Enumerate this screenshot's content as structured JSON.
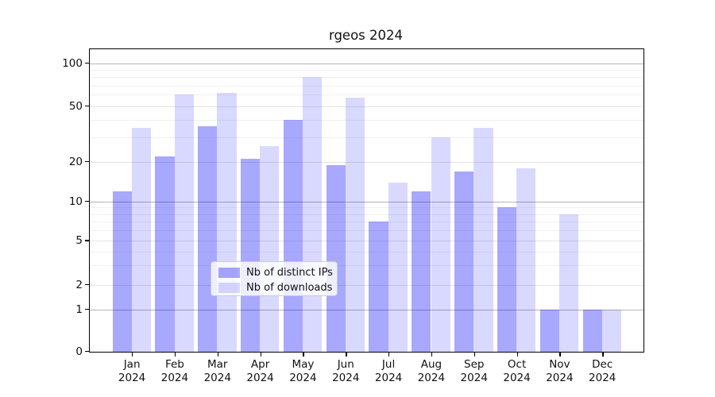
{
  "title": "rgeos 2024",
  "chart_data": {
    "type": "bar",
    "title": "rgeos 2024",
    "categories": [
      "Jan",
      "Feb",
      "Mar",
      "Apr",
      "May",
      "Jun",
      "Jul",
      "Aug",
      "Sep",
      "Oct",
      "Nov",
      "Dec"
    ],
    "category_year": "2024",
    "series": [
      {
        "name": "Nb of distinct IPs",
        "fill": "rgba(0,0,255,0.34)",
        "hex_on_white": "#a9a9f8",
        "values": [
          12,
          22,
          36,
          21,
          40,
          19,
          7,
          12,
          17,
          9,
          1,
          1
        ]
      },
      {
        "name": "Nb of downloads",
        "fill": "rgba(0,0,255,0.15)",
        "hex_on_white": "#d9d9f9",
        "values": [
          35,
          60,
          62,
          26,
          80,
          57,
          14,
          30,
          35,
          18,
          8,
          1
        ]
      }
    ],
    "xlabel": "",
    "ylabel": "",
    "yscale": "symlog",
    "ylim": [
      0,
      126
    ],
    "yticks": [
      0,
      1,
      2,
      5,
      10,
      20,
      50,
      100
    ],
    "yticks_minor": [
      3,
      4,
      6,
      7,
      8,
      9,
      30,
      40,
      60,
      70,
      80,
      90
    ],
    "grid": "horizontal",
    "legend_position": "lower center inside plot"
  },
  "legend": {
    "items": [
      {
        "label": "Nb of distinct IPs"
      },
      {
        "label": "Nb of downloads"
      }
    ]
  },
  "colors": {
    "bar_ips": "#a9a9f8",
    "bar_downloads": "#d9d9f9",
    "grid_major": "#b5b5b5",
    "grid_light": "#e4e4e4",
    "grid_minor": "#f0f0f0",
    "axis": "#000000",
    "legend_border": "#cccccc",
    "background": "#ffffff"
  }
}
